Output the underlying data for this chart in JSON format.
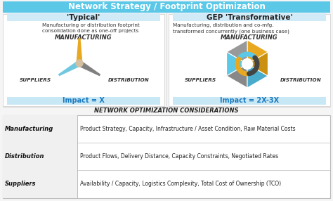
{
  "title": "Network Strategy / Footprint Optimization",
  "title_bg": "#5bc8e8",
  "title_color": "white",
  "left_header": "'Typical'",
  "right_header": "GEP 'Transformative'",
  "left_desc": "Manufacturing or distribution footprint\nconsolidation done as one-off projects",
  "right_desc": "Manufacturing, distribution and co-mfg.\ntransformed concurrently (one business case)",
  "left_impact": "Impact = X",
  "right_impact": "Impact = 2X-3X",
  "impact_color": "#1a7abf",
  "impact_bg": "#c9e8f5",
  "label_manufacturing": "MANUFACTURING",
  "label_suppliers": "SUPPLIERS",
  "label_distribution": "DISTRIBUTION",
  "table_title": "NETWORK OPTIMIZATION CONSIDERATIONS",
  "table_rows": [
    [
      "Manufacturing",
      "Product Strategy, Capacity, Infrastructure / Asset Condition, Raw Material Costs"
    ],
    [
      "Distribution",
      "Product Flows, Delivery Distance, Capacity Constraints, Negotiated Rates"
    ],
    [
      "Suppliers",
      "Availability / Capacity, Logistics Complexity, Total Cost of Ownership (TCO)"
    ]
  ],
  "bg_color": "#f5f5f5",
  "blade_yellow": "#e8a820",
  "blade_blue": "#70c8e0",
  "blade_gray": "#808080",
  "hex_yellow": "#e8a820",
  "hex_blue": "#5bc8e8",
  "hex_gray": "#999999",
  "arc_blue": "#5bc8e8",
  "arc_orange": "#e8a820",
  "arc_dark": "#444444",
  "panel_bg": "#ffffff",
  "header_bg": "#d0eaf8",
  "table_label_bg": "#f0f0f0",
  "table_border": "#bbbbbb"
}
